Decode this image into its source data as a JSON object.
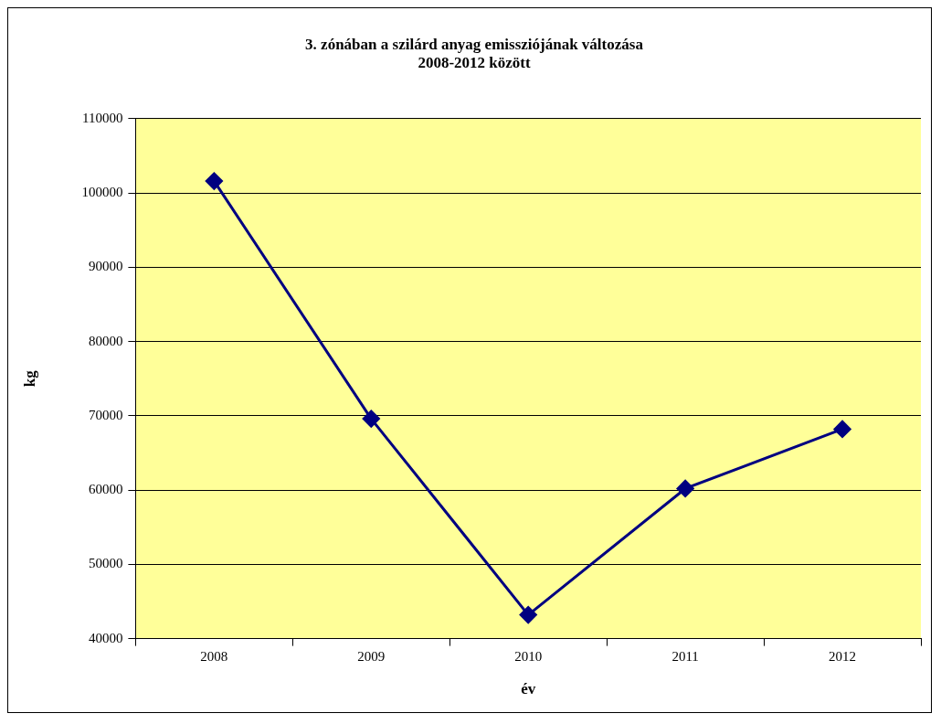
{
  "chart_data": {
    "type": "line",
    "title": [
      "3. zónában a szilárd anyag emissziójának változása",
      "2008-2012 között"
    ],
    "xlabel": "év",
    "ylabel": "kg",
    "categories": [
      "2008",
      "2009",
      "2010",
      "2011",
      "2012"
    ],
    "series": [
      {
        "color": "#000080",
        "values": [
          101600,
          69600,
          43200,
          60200,
          68200
        ]
      }
    ],
    "ylim": [
      40000,
      110000
    ],
    "yticks": [
      40000,
      50000,
      60000,
      70000,
      80000,
      90000,
      100000,
      110000
    ],
    "grid": "y",
    "legend": false,
    "marker": "diamond",
    "line_style": "solid"
  }
}
